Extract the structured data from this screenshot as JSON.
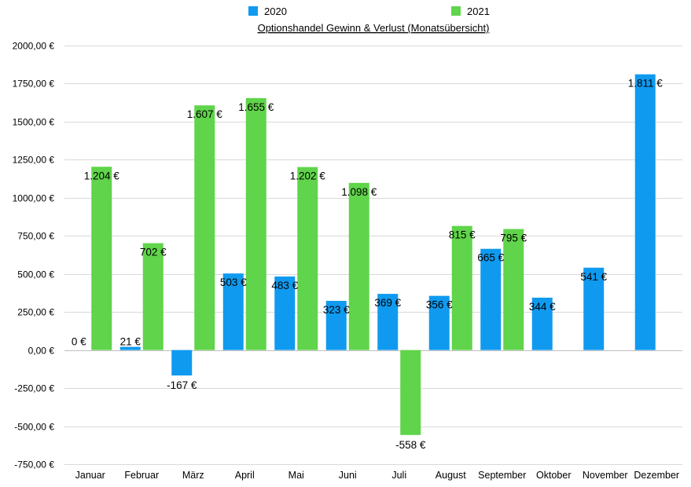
{
  "chart_data": {
    "type": "bar",
    "title": "Optionshandel Gewinn & Verlust (Monatsübersicht)",
    "xlabel": "",
    "ylabel": "",
    "ylim": [
      -750,
      2000
    ],
    "grid": true,
    "legend_position": "top",
    "categories": [
      "Januar",
      "Februar",
      "März",
      "April",
      "Mai",
      "Juni",
      "Juli",
      "August",
      "September",
      "Oktober",
      "November",
      "Dezember"
    ],
    "yticks": [
      2000,
      1750,
      1500,
      1250,
      1000,
      750,
      500,
      250,
      0,
      -250,
      -500,
      -750
    ],
    "ytick_labels": [
      "2000,00 €",
      "1750,00 €",
      "1500,00 €",
      "1250,00 €",
      "1000,00 €",
      "750,00 €",
      "500,00 €",
      "250,00 €",
      "0,00 €",
      "-250,00 €",
      "-500,00 €",
      "-750,00 €"
    ],
    "series": [
      {
        "name": "2020",
        "color": "#0f9af0",
        "values": [
          0,
          21,
          -167,
          503,
          483,
          323,
          369,
          356,
          665,
          344,
          541,
          1811
        ],
        "labels": [
          "0 €",
          "21 €",
          "-167 €",
          "503 €",
          "483 €",
          "323 €",
          "369 €",
          "356 €",
          "665 €",
          "344 €",
          "541 €",
          "1.811 €"
        ]
      },
      {
        "name": "2021",
        "color": "#60d44a",
        "values": [
          1204,
          702,
          1607,
          1655,
          1202,
          1098,
          -558,
          815,
          795,
          null,
          null,
          null
        ],
        "labels": [
          "1.204 €",
          "702 €",
          "1.607 €",
          "1.655 €",
          "1.202 €",
          "1.098 €",
          "-558 €",
          "815 €",
          "795 €",
          null,
          null,
          null
        ]
      }
    ]
  }
}
